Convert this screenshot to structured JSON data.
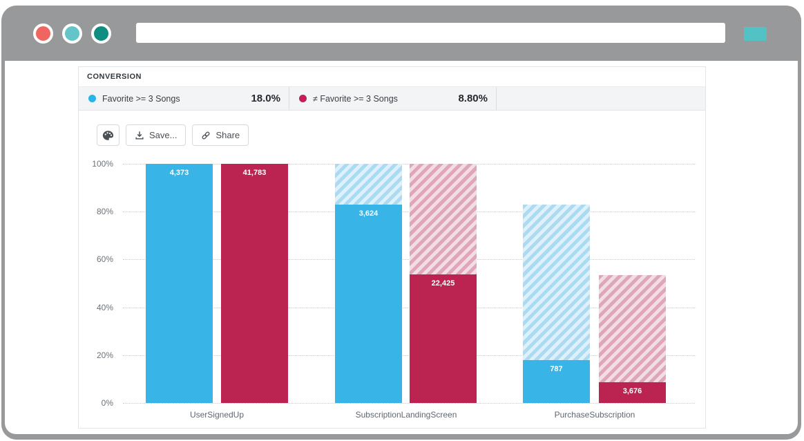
{
  "browser": {
    "chrome_color": "#98999b",
    "traffic_lights": [
      {
        "name": "close",
        "color": "#ef6660"
      },
      {
        "name": "minimize",
        "color": "#63c5c7"
      },
      {
        "name": "maximize",
        "color": "#0f8d81"
      }
    ],
    "address_bar_value": "",
    "action_button_color": "#53c2c4"
  },
  "card": {
    "title": "CONVERSION",
    "legend": [
      {
        "label": "Favorite >= 3 Songs",
        "value": "18.0%",
        "color": "#29b5e8"
      },
      {
        "label": "≠ Favorite >= 3 Songs",
        "value": "8.80%",
        "color": "#c31e56"
      }
    ],
    "toolbar": {
      "palette_icon": "palette-icon",
      "save_label": "Save...",
      "share_label": "Share"
    }
  },
  "chart_data": {
    "type": "bar",
    "subtype": "funnel-grouped-columns",
    "title": "CONVERSION",
    "categories": [
      "UserSignedUp",
      "SubscriptionLandingScreen",
      "PurchaseSubscription"
    ],
    "series": [
      {
        "name": "Favorite >= 3 Songs",
        "color": "#39b4e6",
        "hatch_colors": [
          "#abdbf3",
          "#def1fb"
        ],
        "values": [
          4373,
          3624,
          787
        ],
        "value_labels": [
          "4,373",
          "3,624",
          "787"
        ],
        "percent_of_total": [
          100,
          82.9,
          18.0
        ],
        "overall_conversion": "18.0%"
      },
      {
        "name": "≠ Favorite >= 3 Songs",
        "color": "#bb2350",
        "hatch_colors": [
          "#dfa5b9",
          "#f3dde5"
        ],
        "values": [
          41783,
          22425,
          3676
        ],
        "value_labels": [
          "41,783",
          "22,425",
          "3,676"
        ],
        "percent_of_total": [
          100,
          53.7,
          8.8
        ],
        "overall_conversion": "8.80%"
      }
    ],
    "hatch_meaning": "previous step level (drop-off region above solid bar)",
    "y_ticks": [
      0,
      20,
      40,
      60,
      80,
      100
    ],
    "y_tick_labels": [
      "0%",
      "20%",
      "40%",
      "60%",
      "80%",
      "100%"
    ],
    "ylim": [
      0,
      100
    ],
    "grid": "horizontal dotted"
  }
}
